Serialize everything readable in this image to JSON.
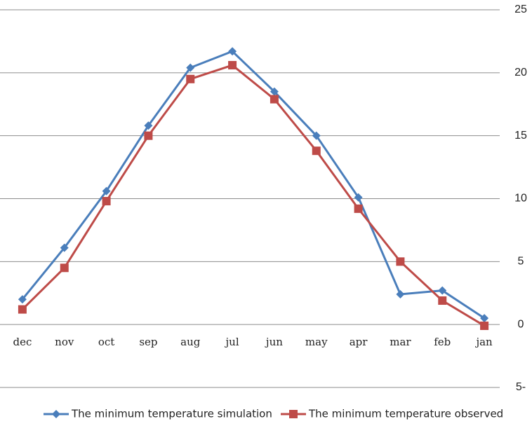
{
  "chart_data": {
    "type": "line",
    "categories": [
      "dec",
      "nov",
      "oct",
      "sep",
      "aug",
      "jul",
      "jun",
      "may",
      "apr",
      "mar",
      "feb",
      "jan"
    ],
    "series": [
      {
        "name": "The minimum temperature simulation",
        "color": "#4a7ebb",
        "marker": "diamond",
        "values": [
          2.0,
          6.1,
          10.6,
          15.8,
          20.4,
          21.7,
          18.5,
          15.0,
          10.1,
          2.4,
          2.7,
          0.5
        ]
      },
      {
        "name": "The minimum temperature observed",
        "color": "#be4b48",
        "marker": "square",
        "values": [
          1.2,
          4.5,
          9.8,
          15.0,
          19.5,
          20.6,
          17.9,
          13.8,
          9.2,
          5.0,
          1.9,
          -0.1
        ]
      }
    ],
    "ylim": [
      -5,
      25
    ],
    "yticks": [
      {
        "value": -5,
        "label": "5-"
      },
      0,
      5,
      10,
      15,
      20,
      25
    ],
    "y_axis_side": "right",
    "grid": true,
    "legend": "bottom"
  }
}
